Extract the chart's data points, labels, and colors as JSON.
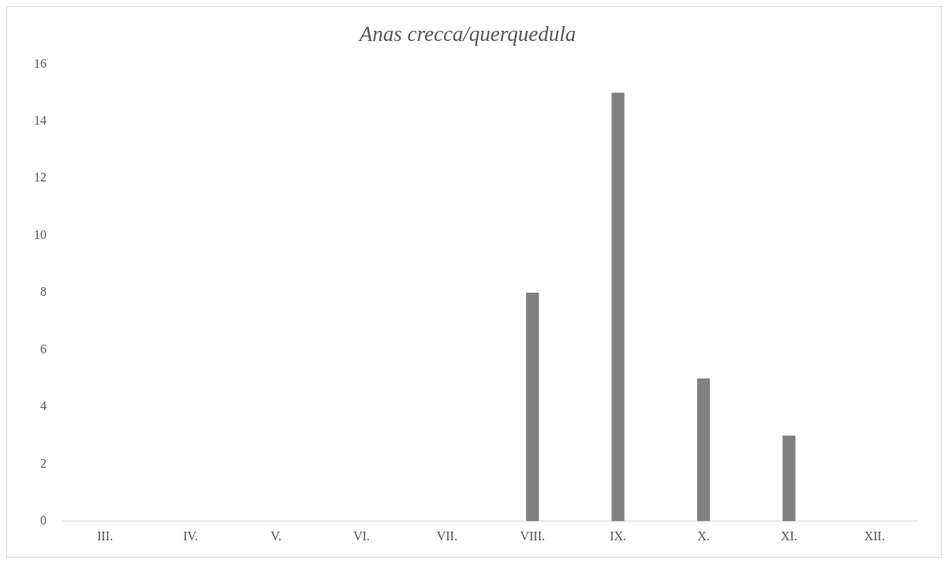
{
  "chart_data": {
    "type": "bar",
    "title": "Anas crecca/querquedula",
    "categories": [
      "III.",
      "IV.",
      "V.",
      "VI.",
      "VII.",
      "VIII.",
      "IX.",
      "X.",
      "XI.",
      "XII."
    ],
    "values": [
      0,
      0,
      0,
      0,
      0,
      8,
      15,
      5,
      3,
      0
    ],
    "color": "#808080",
    "ylim": [
      0,
      16
    ],
    "yticks": [
      0,
      2,
      4,
      6,
      8,
      10,
      12,
      14,
      16
    ],
    "grid": false,
    "legend": false
  }
}
